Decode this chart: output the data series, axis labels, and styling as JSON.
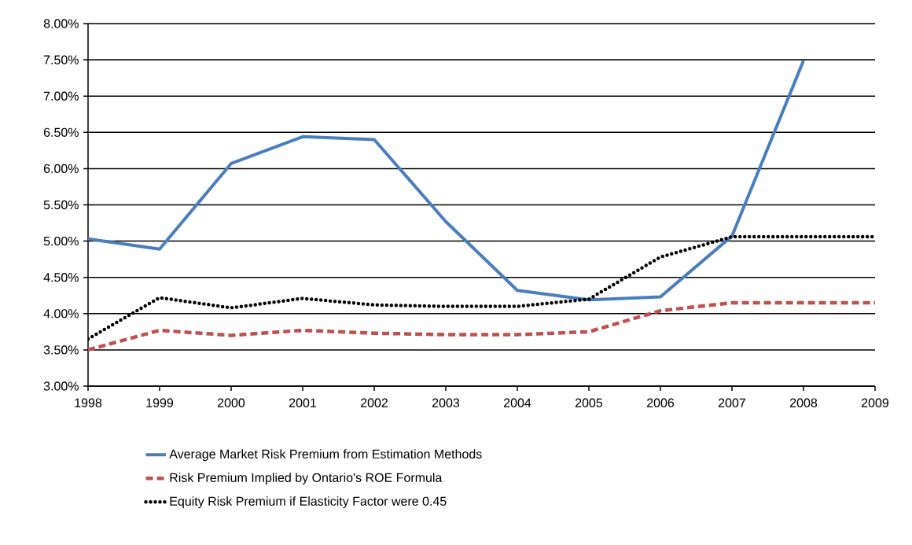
{
  "chart_data": {
    "type": "line",
    "x": [
      1998,
      1999,
      2000,
      2001,
      2002,
      2003,
      2004,
      2005,
      2006,
      2007,
      2008,
      2009
    ],
    "series": [
      {
        "name": "Average Market Risk Premium from Estimation Methods",
        "color": "#4a7ebb",
        "line_style": "solid",
        "values": [
          5.03,
          4.89,
          6.07,
          6.44,
          6.4,
          5.27,
          4.32,
          4.19,
          4.23,
          5.07,
          7.49,
          null
        ]
      },
      {
        "name": "Risk Premium Implied by Ontario's ROE Formula",
        "color": "#c0504d",
        "line_style": "dashed",
        "values": [
          3.5,
          3.77,
          3.7,
          3.77,
          3.73,
          3.71,
          3.71,
          3.75,
          4.04,
          4.15,
          4.15,
          4.15
        ]
      },
      {
        "name": "Equity Risk Premium if Elasticity Factor were 0.45",
        "color": "#000000",
        "line_style": "dotted",
        "values": [
          3.65,
          4.22,
          4.08,
          4.21,
          4.12,
          4.1,
          4.1,
          4.2,
          4.78,
          5.06,
          5.06,
          5.06
        ]
      }
    ],
    "xlim": [
      1998,
      2009
    ],
    "xticks": [
      1998,
      1999,
      2000,
      2001,
      2002,
      2003,
      2004,
      2005,
      2006,
      2007,
      2008,
      2009
    ],
    "ylim": [
      3,
      8
    ],
    "yticks": [
      {
        "value": 3,
        "label": "3.00%"
      },
      {
        "value": 3.5,
        "label": "3.50%"
      },
      {
        "value": 4,
        "label": "4.00%"
      },
      {
        "value": 4.5,
        "label": "4.50%"
      },
      {
        "value": 5,
        "label": "5.00%"
      },
      {
        "value": 5.5,
        "label": "5.50%"
      },
      {
        "value": 6,
        "label": "6.00%"
      },
      {
        "value": 6.5,
        "label": "6.50%"
      },
      {
        "value": 7,
        "label": "7.00%"
      },
      {
        "value": 7.5,
        "label": "7.50%"
      },
      {
        "value": 8,
        "label": "8.00%"
      }
    ],
    "grid": "y",
    "legend": "bottom"
  }
}
